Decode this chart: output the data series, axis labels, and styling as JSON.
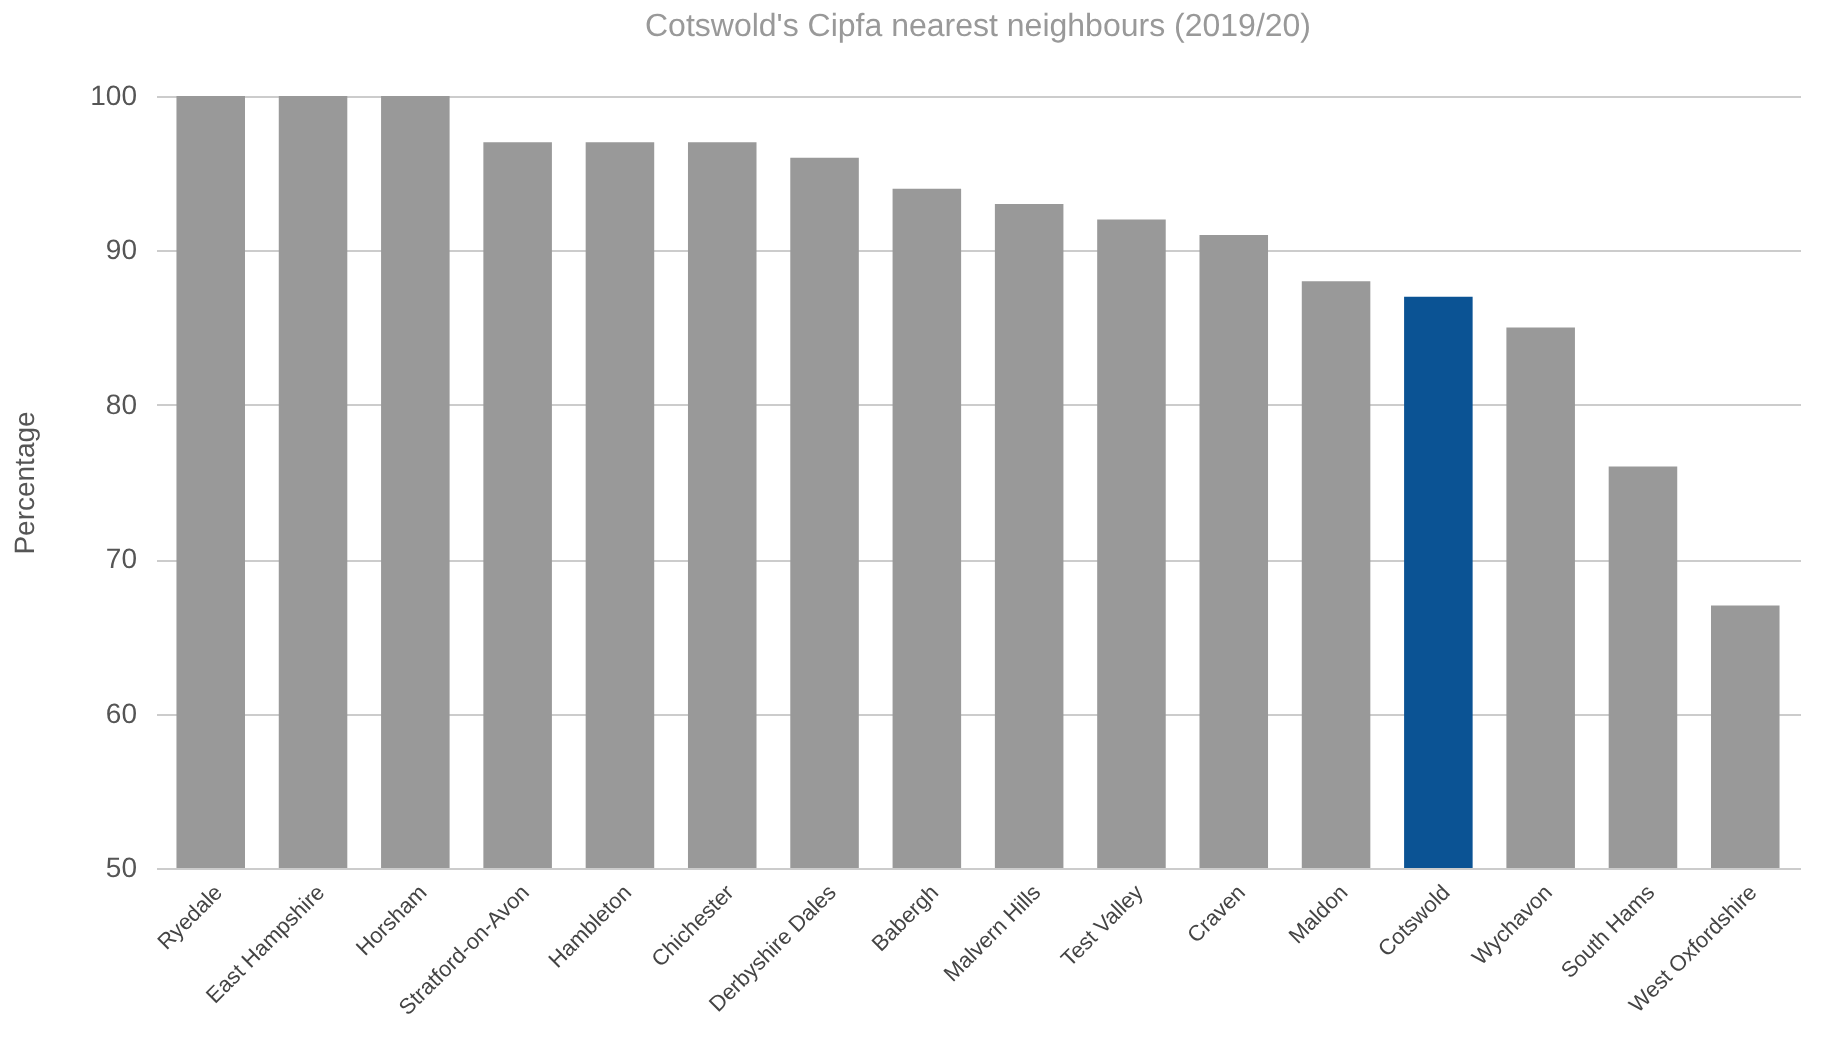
{
  "chart_data": {
    "type": "bar",
    "title": "Cotswold's Cipfa nearest neighbours (2019/20)",
    "ylabel": "Percentage",
    "categories": [
      "Ryedale",
      "East Hampshire",
      "Horsham",
      "Stratford-on-Avon",
      "Hambleton",
      "Chichester",
      "Derbyshire Dales",
      "Babergh",
      "Malvern Hills",
      "Test Valley",
      "Craven",
      "Maldon",
      "Cotswold",
      "Wychavon",
      "South Hams",
      "West Oxfordshire"
    ],
    "values": [
      100,
      100,
      100,
      97,
      97,
      97,
      96,
      94,
      93,
      92,
      91,
      88,
      87,
      85,
      76,
      67
    ],
    "colors": [
      "#999999",
      "#999999",
      "#999999",
      "#999999",
      "#999999",
      "#999999",
      "#999999",
      "#999999",
      "#999999",
      "#999999",
      "#999999",
      "#999999",
      "#0b5394",
      "#999999",
      "#999999",
      "#999999"
    ],
    "ylim": [
      50,
      100
    ],
    "yticks": [
      50,
      60,
      70,
      80,
      90,
      100
    ],
    "grid": "y"
  }
}
